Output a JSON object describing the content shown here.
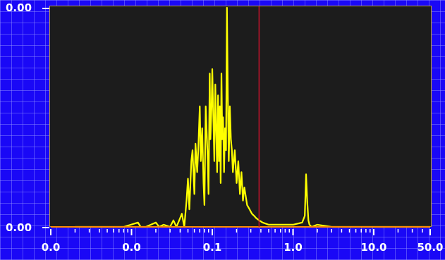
{
  "colors": {
    "background": "#1a08f6",
    "plot_background": "#1c1c1c",
    "trace": "#ffff00",
    "cursor": "#c0142c",
    "baseline": "#ff8c00",
    "frame": "#b89a3a"
  },
  "chart_data": {
    "type": "line",
    "x_scale": "log",
    "y_tick_labels": [
      "0.00",
      "0.00"
    ],
    "x_tick_labels": [
      "0.0",
      "0.0",
      "0.1",
      "1.0",
      "10.0",
      "50.0"
    ],
    "x_tick_values": [
      0.001,
      0.01,
      0.1,
      1.0,
      10.0,
      50.0
    ],
    "xlim": [
      0.001,
      50.0
    ],
    "ylim": [
      0,
      1.0
    ],
    "cursor_x": 0.38,
    "series": [
      {
        "x": [
          0.002,
          0.008,
          0.012,
          0.013,
          0.015,
          0.02,
          0.022,
          0.025,
          0.03,
          0.033,
          0.036,
          0.04,
          0.042,
          0.045,
          0.048,
          0.05,
          0.052,
          0.055,
          0.057,
          0.06,
          0.062,
          0.065,
          0.067,
          0.07,
          0.072,
          0.075,
          0.078,
          0.08,
          0.083,
          0.085,
          0.088,
          0.09,
          0.093,
          0.095,
          0.098,
          0.1,
          0.103,
          0.106,
          0.109,
          0.112,
          0.115,
          0.118,
          0.121,
          0.124,
          0.127,
          0.13,
          0.133,
          0.136,
          0.14,
          0.144,
          0.148,
          0.152,
          0.156,
          0.16,
          0.165,
          0.17,
          0.175,
          0.18,
          0.19,
          0.2,
          0.21,
          0.22,
          0.23,
          0.24,
          0.25,
          0.27,
          0.29,
          0.31,
          0.33,
          0.35,
          0.38,
          0.42,
          0.5,
          0.7,
          1.0,
          1.3,
          1.4,
          1.45,
          1.5,
          1.55,
          1.6,
          1.7,
          2.0,
          3.0,
          50.0
        ],
        "y": [
          0.0,
          0.0,
          0.02,
          0.0,
          0.0,
          0.02,
          0.0,
          0.01,
          0.0,
          0.03,
          0.0,
          0.04,
          0.06,
          0.0,
          0.12,
          0.22,
          0.08,
          0.3,
          0.35,
          0.15,
          0.38,
          0.25,
          0.35,
          0.55,
          0.3,
          0.45,
          0.2,
          0.1,
          0.55,
          0.45,
          0.3,
          0.15,
          0.7,
          0.4,
          0.55,
          0.72,
          0.5,
          0.3,
          0.65,
          0.45,
          0.25,
          0.6,
          0.3,
          0.55,
          0.2,
          0.7,
          0.4,
          0.5,
          0.25,
          0.45,
          0.35,
          1.0,
          0.6,
          0.3,
          0.55,
          0.4,
          0.35,
          0.25,
          0.35,
          0.2,
          0.3,
          0.15,
          0.25,
          0.12,
          0.18,
          0.1,
          0.08,
          0.06,
          0.05,
          0.04,
          0.03,
          0.02,
          0.01,
          0.01,
          0.01,
          0.02,
          0.05,
          0.24,
          0.12,
          0.03,
          0.01,
          0.0,
          0.01,
          0.0,
          0.0
        ]
      }
    ]
  }
}
